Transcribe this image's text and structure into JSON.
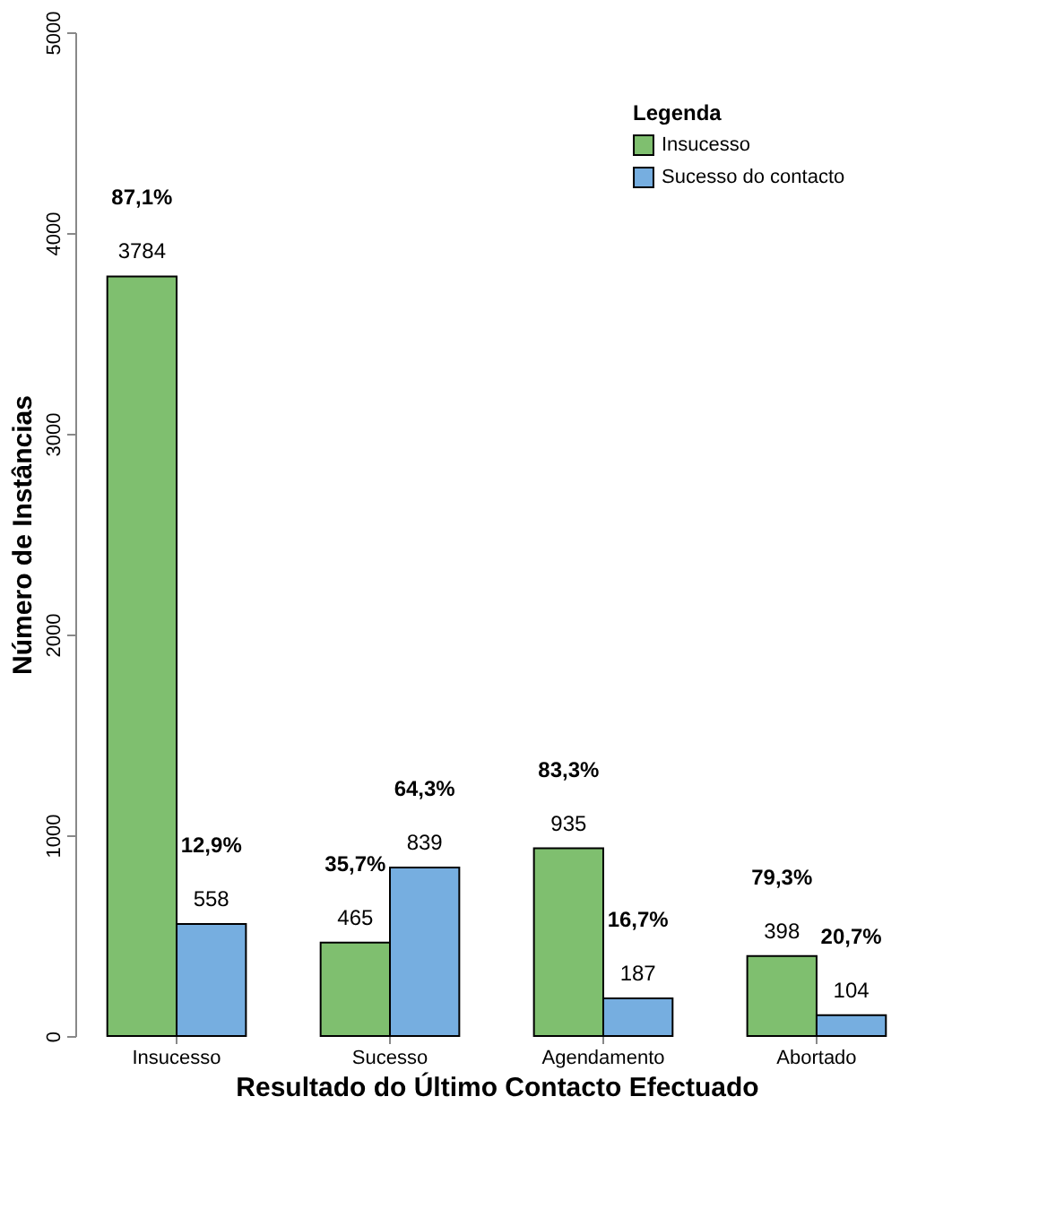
{
  "chart_data": {
    "type": "bar",
    "xlabel": "Resultado do Último Contacto Efectuado",
    "ylabel": "Número de Instâncias",
    "legend_title": "Legenda",
    "categories": [
      "Insucesso",
      "Sucesso",
      "Agendamento",
      "Abortado"
    ],
    "series": [
      {
        "name": "Insucesso",
        "color": "#7fbf6f",
        "values": [
          3784,
          465,
          935,
          398
        ]
      },
      {
        "name": "Sucesso do contacto",
        "color": "#76aee0",
        "values": [
          558,
          839,
          187,
          104
        ]
      }
    ],
    "ylim": [
      0,
      5000
    ],
    "yticks": [
      0,
      1000,
      2000,
      3000,
      4000,
      5000
    ],
    "grid": false,
    "legend": "top right",
    "data_labels": true,
    "annotations": [
      "87,1%",
      "12,9%",
      "35,7%",
      "64,3%",
      "83,3%",
      "16,7%",
      "79,3%",
      "20,7%"
    ]
  }
}
